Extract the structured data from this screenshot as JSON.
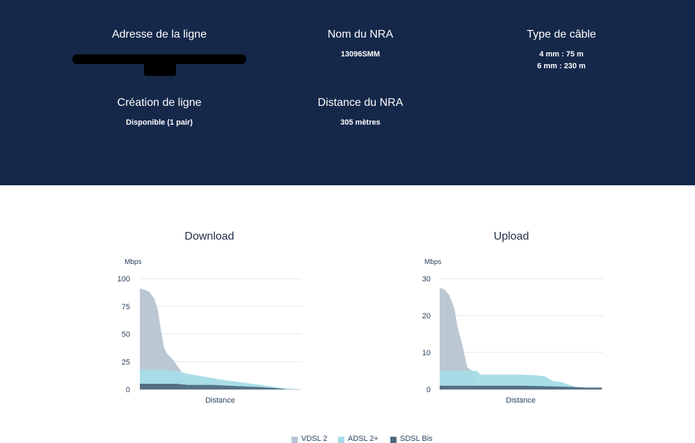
{
  "header": {
    "address": {
      "label": "Adresse de la ligne",
      "value": ""
    },
    "nra_name": {
      "label": "Nom du NRA",
      "value": "13096SMM"
    },
    "cable_type": {
      "label": "Type de câble",
      "lines": [
        "4 mm : 75 m",
        "6 mm : 230 m"
      ]
    },
    "line_creation": {
      "label": "Création de ligne",
      "value": "Disponible (1 pair)"
    },
    "nra_distance": {
      "label": "Distance du NRA",
      "value": "305 mètres"
    }
  },
  "legend": [
    {
      "name": "VDSL 2",
      "color": "#b8c4d2"
    },
    {
      "name": "ADSL 2+",
      "color": "#a5dce6"
    },
    {
      "name": "SDSL Bis",
      "color": "#4f6a7f"
    }
  ],
  "chart_data": [
    {
      "type": "area",
      "title": "Download",
      "xlabel": "Distance",
      "ylabel": "Mbps",
      "ylim": [
        0,
        100
      ],
      "yticks": [
        0,
        25,
        50,
        75,
        100
      ],
      "grid": true,
      "series": [
        {
          "name": "VDSL 2",
          "color": "#b8c4d2",
          "points": [
            [
              0,
              91
            ],
            [
              0.03,
              90
            ],
            [
              0.06,
              88
            ],
            [
              0.09,
              82
            ],
            [
              0.11,
              73
            ],
            [
              0.13,
              55
            ],
            [
              0.15,
              38
            ],
            [
              0.17,
              32
            ],
            [
              0.2,
              28
            ],
            [
              0.22,
              24
            ],
            [
              0.25,
              18
            ],
            [
              0.28,
              8
            ],
            [
              0.31,
              0
            ],
            [
              1,
              0
            ]
          ]
        },
        {
          "name": "ADSL 2+",
          "color": "#a5dce6",
          "points": [
            [
              0,
              18
            ],
            [
              0.12,
              18
            ],
            [
              0.2,
              17
            ],
            [
              0.25,
              16
            ],
            [
              0.3,
              14
            ],
            [
              0.38,
              12
            ],
            [
              0.5,
              9
            ],
            [
              0.6,
              7
            ],
            [
              0.7,
              5
            ],
            [
              0.8,
              3
            ],
            [
              0.9,
              1
            ],
            [
              1,
              0
            ]
          ]
        },
        {
          "name": "SDSL Bis",
          "color": "#4f6a7f",
          "points": [
            [
              0,
              5
            ],
            [
              0.23,
              5
            ],
            [
              0.3,
              4
            ],
            [
              0.45,
              4
            ],
            [
              0.6,
              3
            ],
            [
              0.75,
              2
            ],
            [
              0.85,
              1
            ],
            [
              0.92,
              0
            ],
            [
              1,
              0
            ]
          ]
        }
      ]
    },
    {
      "type": "area",
      "title": "Upload",
      "xlabel": "Distance",
      "ylabel": "Mbps",
      "ylim": [
        0,
        30
      ],
      "yticks": [
        0,
        10,
        20,
        30
      ],
      "grid": true,
      "series": [
        {
          "name": "VDSL 2",
          "color": "#b8c4d2",
          "points": [
            [
              0,
              27.5
            ],
            [
              0.03,
              27
            ],
            [
              0.06,
              25.5
            ],
            [
              0.09,
              22
            ],
            [
              0.11,
              17
            ],
            [
              0.14,
              12
            ],
            [
              0.17,
              6
            ],
            [
              0.2,
              5
            ],
            [
              0.22,
              2.5
            ],
            [
              0.25,
              0.5
            ],
            [
              0.27,
              0
            ],
            [
              1,
              0
            ]
          ]
        },
        {
          "name": "ADSL 2+",
          "color": "#a5dce6",
          "points": [
            [
              0,
              5
            ],
            [
              0.2,
              5
            ],
            [
              0.23,
              5
            ],
            [
              0.25,
              4
            ],
            [
              0.35,
              4
            ],
            [
              0.5,
              4
            ],
            [
              0.6,
              3.8
            ],
            [
              0.65,
              3.5
            ],
            [
              0.7,
              2.2
            ],
            [
              0.75,
              2
            ],
            [
              0.8,
              1.2
            ],
            [
              0.85,
              0.5
            ],
            [
              0.9,
              0
            ],
            [
              1,
              0
            ]
          ]
        },
        {
          "name": "SDSL Bis",
          "color": "#4f6a7f",
          "points": [
            [
              0,
              1
            ],
            [
              0.5,
              1
            ],
            [
              0.7,
              0.8
            ],
            [
              0.85,
              0.6
            ],
            [
              0.9,
              0.5
            ],
            [
              1,
              0.5
            ]
          ]
        }
      ]
    }
  ]
}
